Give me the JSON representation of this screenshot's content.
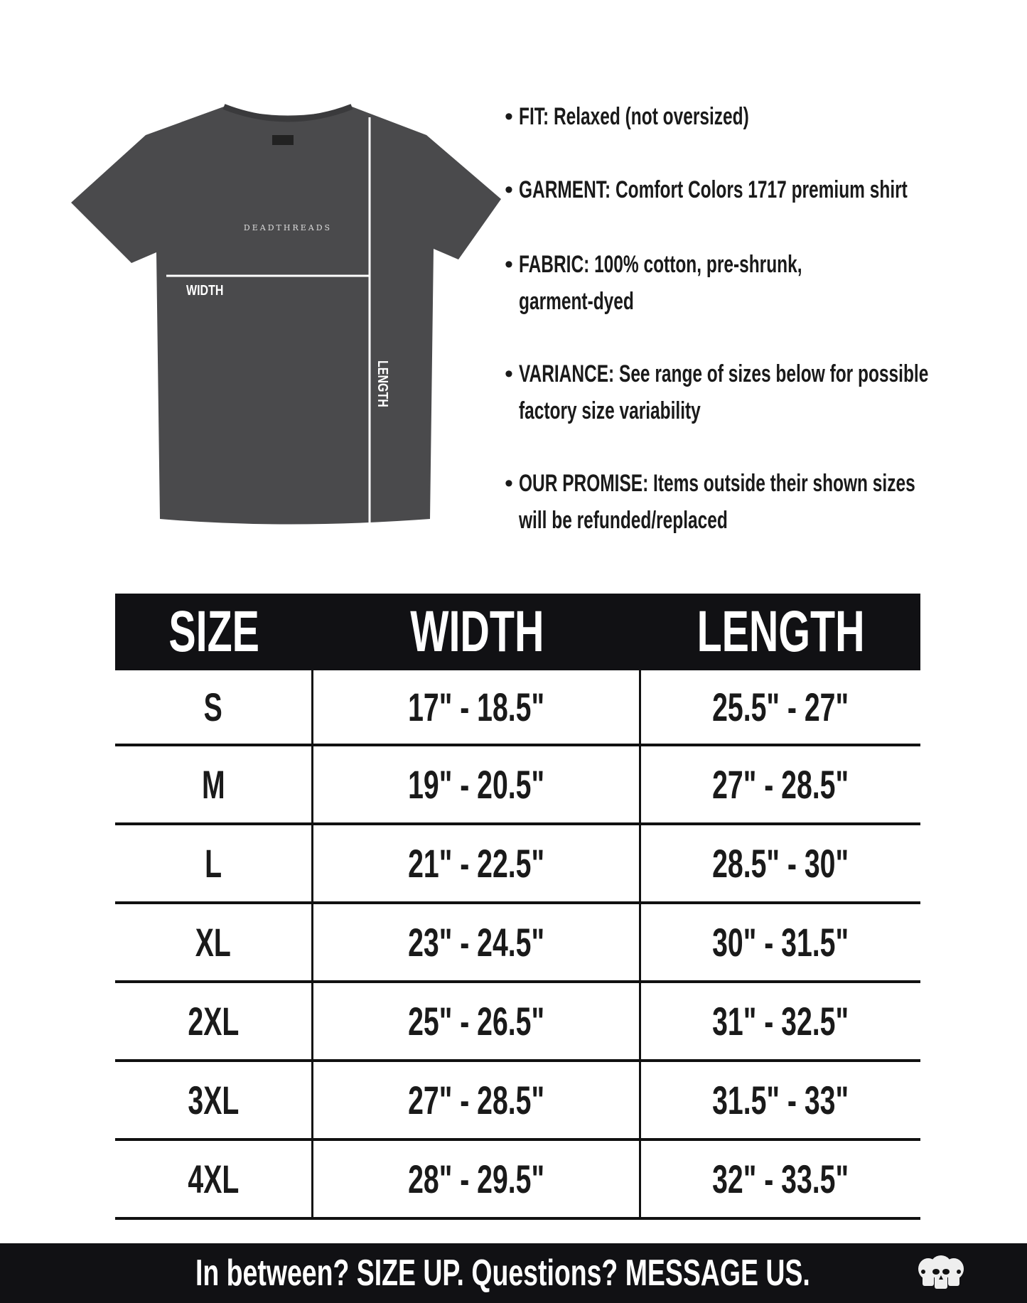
{
  "shirt": {
    "brand_print": "DEADTHREADS",
    "width_label": "WIDTH",
    "length_label": "LENGTH",
    "color": "#4a4a4c"
  },
  "details": [
    {
      "lines": [
        "FIT: Relaxed (not oversized)"
      ]
    },
    {
      "lines": [
        "GARMENT: Comfort Colors 1717 premium shirt"
      ]
    },
    {
      "lines": [
        "FABRIC: 100% cotton, pre-shrunk,",
        "garment-dyed"
      ]
    },
    {
      "lines": [
        "VARIANCE: See range of sizes below for possible",
        "factory size variability"
      ]
    },
    {
      "lines": [
        "OUR PROMISE: Items outside their shown sizes",
        "will be refunded/replaced"
      ]
    }
  ],
  "size_table": {
    "headers": [
      "SIZE",
      "WIDTH",
      "LENGTH"
    ],
    "rows": [
      [
        "S",
        "17\" - 18.5\"",
        "25.5\" - 27\""
      ],
      [
        "M",
        "19\" - 20.5\"",
        "27\" - 28.5\""
      ],
      [
        "L",
        "21\" - 22.5\"",
        "28.5\" - 30\""
      ],
      [
        "XL",
        "23\" - 24.5\"",
        "30\" - 31.5\""
      ],
      [
        "2XL",
        "25\" - 26.5\"",
        "31\" - 32.5\""
      ],
      [
        "3XL",
        "27\" - 28.5\"",
        "31.5\" - 33\""
      ],
      [
        "4XL",
        "28\" - 29.5\"",
        "32\" - 33.5\""
      ]
    ]
  },
  "footer": {
    "message": "In between? SIZE UP. Questions? MESSAGE US.",
    "logo": "three-skulls-logo"
  }
}
